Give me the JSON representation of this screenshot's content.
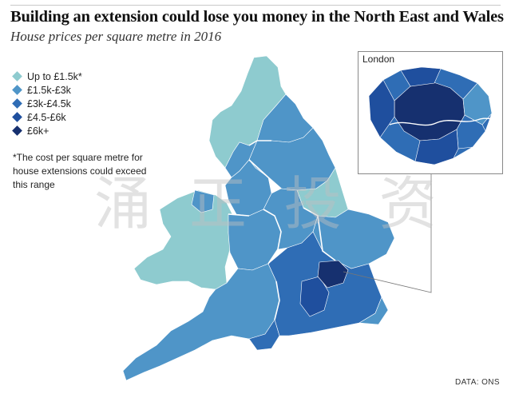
{
  "title": "Building an extension could lose you money in the North East and Wales",
  "subtitle": "House prices per square metre in 2016",
  "legend": [
    {
      "label": "Up to £1.5k*",
      "color": "#8ecbcf"
    },
    {
      "label": "£1.5k-£3k",
      "color": "#4f95c8"
    },
    {
      "label": "£3k-£4.5k",
      "color": "#2f6db5"
    },
    {
      "label": "£4.5-£6k",
      "color": "#1f4f9e"
    },
    {
      "label": "£6k+",
      "color": "#16306f"
    }
  ],
  "footnote": "*The cost per square metre for house extensions could exceed this range",
  "inset": {
    "title": "London"
  },
  "source": "DATA: ONS",
  "watermark": "涌 正 投 资"
}
